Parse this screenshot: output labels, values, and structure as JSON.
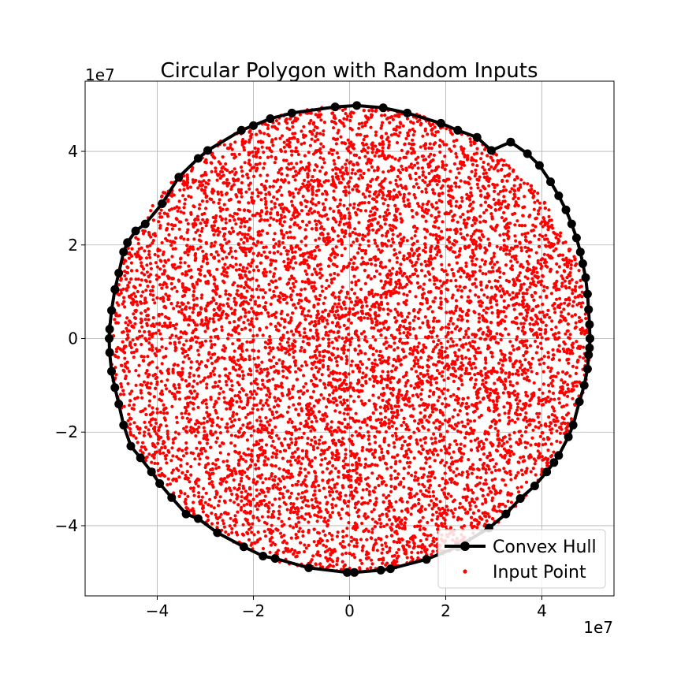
{
  "chart_data": {
    "type": "scatter",
    "title": "Circular Polygon with Random Inputs",
    "xlabel": "",
    "ylabel": "",
    "x_offset_label": "1e7",
    "y_offset_label": "1e7",
    "xlim": [
      -5.5,
      5.5
    ],
    "ylim": [
      -5.5,
      5.5
    ],
    "x_ticks": [
      -4,
      -2,
      0,
      2,
      4
    ],
    "y_ticks": [
      -4,
      -2,
      0,
      2,
      4
    ],
    "x_tick_labels": [
      "−4",
      "−2",
      "0",
      "2",
      "4"
    ],
    "y_tick_labels": [
      "−4",
      "−2",
      "0",
      "2",
      "4"
    ],
    "grid": true,
    "legend_position": "lower-right",
    "series": [
      {
        "name": "Convex Hull",
        "kind": "line-with-markers",
        "color": "#000000",
        "points": [
          [
            5.0,
            0.0
          ],
          [
            4.99,
            0.3
          ],
          [
            4.97,
            0.62
          ],
          [
            4.95,
            0.95
          ],
          [
            4.91,
            1.3
          ],
          [
            4.85,
            1.6
          ],
          [
            4.8,
            1.85
          ],
          [
            4.72,
            2.15
          ],
          [
            4.62,
            2.45
          ],
          [
            4.5,
            2.75
          ],
          [
            4.35,
            3.05
          ],
          [
            4.18,
            3.35
          ],
          [
            3.95,
            3.7
          ],
          [
            3.7,
            3.95
          ],
          [
            3.35,
            4.2
          ],
          [
            2.95,
            4.02
          ],
          [
            2.65,
            4.3
          ],
          [
            2.25,
            4.45
          ],
          [
            1.9,
            4.6
          ],
          [
            1.2,
            4.82
          ],
          [
            0.7,
            4.93
          ],
          [
            0.15,
            4.98
          ],
          [
            -0.3,
            4.95
          ],
          [
            -1.2,
            4.82
          ],
          [
            -1.65,
            4.7
          ],
          [
            -2.0,
            4.55
          ],
          [
            -2.25,
            4.45
          ],
          [
            -2.95,
            4.02
          ],
          [
            -3.15,
            3.85
          ],
          [
            -3.55,
            3.45
          ],
          [
            -3.9,
            2.88
          ],
          [
            -4.25,
            2.45
          ],
          [
            -4.45,
            2.3
          ],
          [
            -4.62,
            2.05
          ],
          [
            -4.7,
            1.85
          ],
          [
            -4.8,
            1.4
          ],
          [
            -4.88,
            1.05
          ],
          [
            -4.95,
            0.6
          ],
          [
            -4.99,
            0.2
          ],
          [
            -5.0,
            0.0
          ],
          [
            -4.99,
            -0.3
          ],
          [
            -4.95,
            -0.7
          ],
          [
            -4.88,
            -1.05
          ],
          [
            -4.8,
            -1.4
          ],
          [
            -4.7,
            -1.85
          ],
          [
            -4.55,
            -2.3
          ],
          [
            -4.35,
            -2.55
          ],
          [
            -4.12,
            -2.85
          ],
          [
            -3.95,
            -3.1
          ],
          [
            -3.7,
            -3.4
          ],
          [
            -3.4,
            -3.75
          ],
          [
            -3.15,
            -3.85
          ],
          [
            -2.75,
            -4.15
          ],
          [
            -2.2,
            -4.45
          ],
          [
            -1.8,
            -4.65
          ],
          [
            -1.55,
            -4.7
          ],
          [
            -0.85,
            -4.9
          ],
          [
            -0.05,
            -5.0
          ],
          [
            0.1,
            -5.0
          ],
          [
            0.65,
            -4.95
          ],
          [
            0.85,
            -4.92
          ],
          [
            1.6,
            -4.72
          ],
          [
            2.25,
            -4.45
          ],
          [
            2.9,
            -4.05
          ],
          [
            3.25,
            -3.75
          ],
          [
            3.55,
            -3.42
          ],
          [
            3.85,
            -3.15
          ],
          [
            4.1,
            -2.85
          ],
          [
            4.25,
            -2.65
          ],
          [
            4.35,
            -2.5
          ],
          [
            4.55,
            -2.1
          ],
          [
            4.65,
            -1.85
          ],
          [
            4.78,
            -1.35
          ],
          [
            4.88,
            -1.0
          ],
          [
            4.95,
            -0.65
          ],
          [
            4.97,
            -0.35
          ],
          [
            4.99,
            -0.2
          ],
          [
            5.0,
            0.0
          ]
        ]
      },
      {
        "name": "Input Point",
        "kind": "scatter",
        "color": "#ff0000",
        "distribution": "uniform-in-circle",
        "center": [
          0,
          0
        ],
        "radius": 5.0
      }
    ],
    "legend": [
      "Convex Hull",
      "Input Point"
    ]
  }
}
